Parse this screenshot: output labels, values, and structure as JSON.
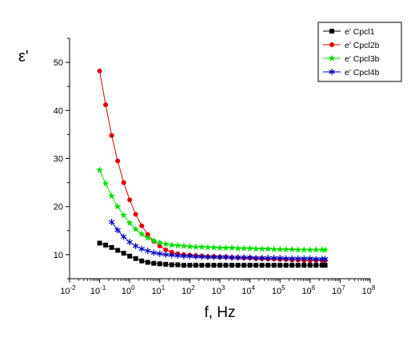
{
  "chart_data": {
    "type": "scatter",
    "ylabel": "ε'",
    "xlabel": "f, Hz",
    "xscale": "log",
    "xlim": [
      0.01,
      100000000
    ],
    "ylim": [
      5,
      55
    ],
    "x_ticks": [
      {
        "base": "10",
        "exp": "-2"
      },
      {
        "base": "10",
        "exp": "-1"
      },
      {
        "base": "10",
        "exp": "0"
      },
      {
        "base": "10",
        "exp": "1"
      },
      {
        "base": "10",
        "exp": "2"
      },
      {
        "base": "10",
        "exp": "3"
      },
      {
        "base": "10",
        "exp": "4"
      },
      {
        "base": "10",
        "exp": "5"
      },
      {
        "base": "10",
        "exp": "6"
      },
      {
        "base": "10",
        "exp": "7"
      },
      {
        "base": "10",
        "exp": "8"
      }
    ],
    "y_ticks": [
      "10",
      "20",
      "30",
      "40",
      "50"
    ],
    "legend_position": "top-right",
    "grid": false,
    "series": [
      {
        "name": "e' Cpcl1",
        "color": "#000000",
        "marker": "square",
        "x": [
          0.1,
          0.158,
          0.251,
          0.398,
          0.631,
          1,
          1.58,
          2.51,
          3.98,
          6.31,
          10,
          15.8,
          25.1,
          39.8,
          63.1,
          100,
          158,
          251,
          398,
          631,
          1000,
          1580,
          2510,
          3980,
          6310,
          10000,
          15800,
          25100,
          39800,
          63100,
          100000,
          158000,
          251000,
          398000,
          631000,
          1000000,
          1580000,
          2510000,
          3160000
        ],
        "y": [
          12.4,
          12,
          11.5,
          10.9,
          10.3,
          9.7,
          9.2,
          8.7,
          8.4,
          8.2,
          8.1,
          8,
          7.9,
          7.9,
          7.8,
          7.8,
          7.8,
          7.8,
          7.8,
          7.8,
          7.8,
          7.8,
          7.8,
          7.8,
          7.8,
          7.8,
          7.8,
          7.8,
          7.8,
          7.8,
          7.8,
          7.8,
          7.8,
          7.8,
          7.8,
          7.8,
          7.8,
          7.8,
          7.8
        ]
      },
      {
        "name": "e' Cpcl2b",
        "color": "#e00000",
        "marker": "circle",
        "x": [
          0.1,
          0.158,
          0.251,
          0.398,
          0.631,
          1,
          1.58,
          2.51,
          3.98,
          6.31,
          10,
          15.8,
          25.1,
          39.8,
          63.1,
          100,
          158,
          251,
          398,
          631,
          1000,
          1580,
          2510,
          3980,
          6310,
          10000,
          15800,
          25100,
          39800,
          63100,
          100000,
          158000,
          251000,
          398000,
          631000,
          1000000,
          1580000,
          2510000,
          3160000
        ],
        "y": [
          48.2,
          41.2,
          34.8,
          29.5,
          25,
          21.4,
          18.4,
          16,
          14.2,
          12.8,
          11.8,
          11,
          10.5,
          10.2,
          10,
          9.9,
          9.8,
          9.7,
          9.6,
          9.6,
          9.5,
          9.5,
          9.4,
          9.4,
          9.3,
          9.3,
          9.2,
          9.2,
          9.1,
          9.1,
          9,
          9,
          8.9,
          8.9,
          8.8,
          8.8,
          8.8,
          8.8,
          8.8
        ]
      },
      {
        "name": "e' Cpcl3b",
        "color": "#00e000",
        "marker": "star",
        "x": [
          0.1,
          0.158,
          0.251,
          0.398,
          0.631,
          1,
          1.58,
          2.51,
          3.98,
          6.31,
          10,
          15.8,
          25.1,
          39.8,
          63.1,
          100,
          158,
          251,
          398,
          631,
          1000,
          1580,
          2510,
          3980,
          6310,
          10000,
          15800,
          25100,
          39800,
          63100,
          100000,
          158000,
          251000,
          398000,
          631000,
          1000000,
          1580000,
          2510000,
          3160000
        ],
        "y": [
          27.6,
          24.8,
          22.2,
          20,
          18.2,
          16.6,
          15.3,
          14.3,
          13.5,
          12.9,
          12.5,
          12.2,
          12,
          11.9,
          11.8,
          11.7,
          11.6,
          11.6,
          11.5,
          11.5,
          11.4,
          11.4,
          11.4,
          11.3,
          11.3,
          11.3,
          11.2,
          11.2,
          11.2,
          11.1,
          11.1,
          11.1,
          11.1,
          11,
          11,
          11,
          11,
          11,
          11
        ]
      },
      {
        "name": "e' Cpcl4b",
        "color": "#0000c0",
        "marker": "asterisk",
        "x": [
          0.251,
          0.398,
          0.631,
          1,
          1.58,
          2.51,
          3.98,
          6.31,
          10,
          15.8,
          25.1,
          39.8,
          63.1,
          100,
          158,
          251,
          398,
          631,
          1000,
          1580,
          2510,
          3980,
          6310,
          10000,
          15800,
          25100,
          39800,
          63100,
          100000,
          158000,
          251000,
          398000,
          631000,
          1000000,
          1580000,
          2510000,
          3160000
        ],
        "y": [
          16.8,
          15.1,
          13.7,
          12.6,
          11.8,
          11.2,
          10.8,
          10.4,
          10.2,
          10,
          9.9,
          9.8,
          9.7,
          9.7,
          9.6,
          9.6,
          9.5,
          9.5,
          9.5,
          9.5,
          9.4,
          9.4,
          9.4,
          9.4,
          9.3,
          9.3,
          9.3,
          9.3,
          9.3,
          9.2,
          9.2,
          9.2,
          9.2,
          9.2,
          9.1,
          9.1,
          9.1
        ]
      }
    ]
  }
}
